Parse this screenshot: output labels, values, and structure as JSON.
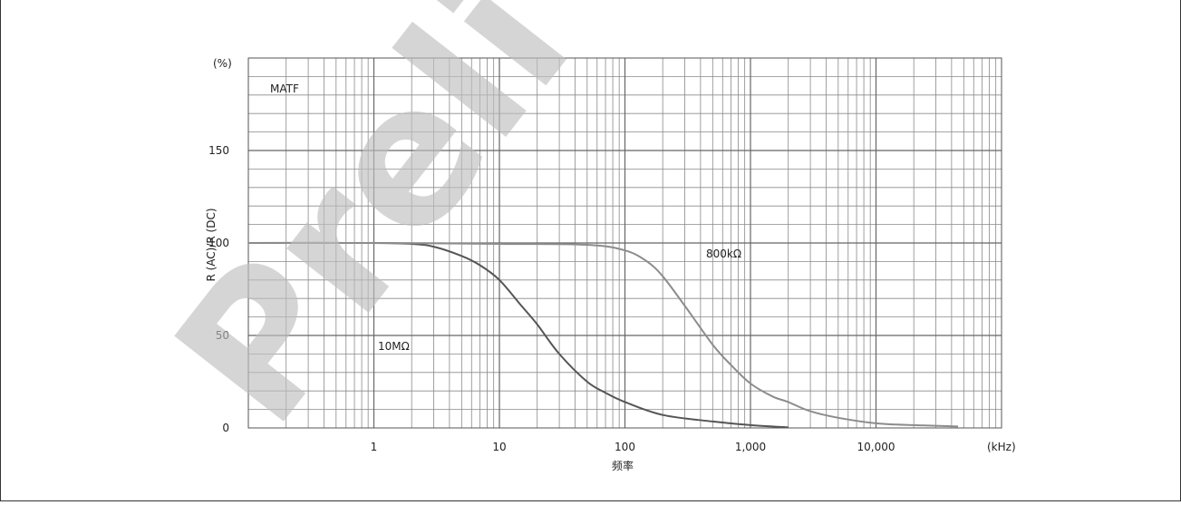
{
  "chart_data": {
    "type": "line",
    "title": "",
    "annotation": "MATF",
    "xlabel": "频率",
    "x_unit": "(kHz)",
    "ylabel": "R (AC)/R (DC)",
    "y_unit": "(%)",
    "x_scale": "log",
    "xlim": [
      0.1,
      100000
    ],
    "ylim": [
      0,
      200
    ],
    "x_ticks": [
      {
        "value": 1,
        "label": "1"
      },
      {
        "value": 10,
        "label": "10"
      },
      {
        "value": 100,
        "label": "100"
      },
      {
        "value": 1000,
        "label": "1,000"
      },
      {
        "value": 10000,
        "label": "10,000"
      }
    ],
    "y_ticks": [
      {
        "value": 0,
        "label": "0"
      },
      {
        "value": 50,
        "label": "50"
      },
      {
        "value": 100,
        "label": "100"
      },
      {
        "value": 150,
        "label": "150"
      }
    ],
    "grid": true,
    "watermark": "Preli",
    "series": [
      {
        "name": "10MΩ",
        "color": "#555555",
        "x": [
          0.1,
          1,
          2,
          3,
          5,
          7,
          10,
          15,
          20,
          30,
          50,
          70,
          100,
          200,
          500,
          1000,
          2000
        ],
        "y": [
          100,
          100,
          99.5,
          98,
          93,
          88,
          80,
          66,
          56,
          40,
          25,
          19,
          14,
          7,
          3.5,
          1.5,
          0.3
        ]
      },
      {
        "name": "800kΩ",
        "color": "#8c8c8c",
        "x": [
          0.1,
          1,
          10,
          50,
          100,
          150,
          200,
          300,
          500,
          700,
          1000,
          1500,
          2000,
          3000,
          5000,
          10000,
          20000,
          45000
        ],
        "y": [
          100,
          100,
          99.5,
          99,
          96,
          90,
          82,
          66,
          45,
          34,
          24,
          17,
          14,
          9,
          5.5,
          2.5,
          1.5,
          0.8
        ]
      }
    ]
  }
}
